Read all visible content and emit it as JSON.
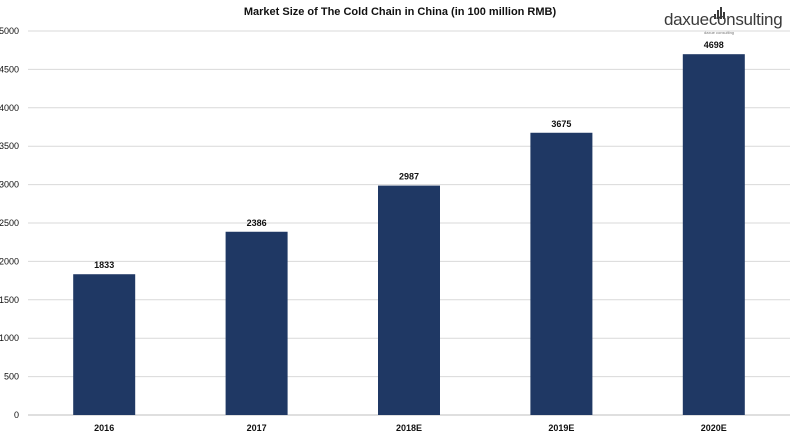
{
  "chart_data": {
    "type": "bar",
    "title": "Market Size of The Cold Chain in China (in 100 million RMB)",
    "categories": [
      "2016",
      "2017",
      "2018E",
      "2019E",
      "2020E"
    ],
    "values": [
      1833,
      2386,
      2987,
      3675,
      4698
    ],
    "data_labels": [
      "1833",
      "2386",
      "2987",
      "3675",
      "4698"
    ],
    "xlabel": "",
    "ylabel": "",
    "ylim": [
      0,
      5000
    ],
    "yticks": [
      "0",
      "500",
      "1000",
      "1500",
      "2000",
      "2500",
      "3000",
      "3500",
      "4000",
      "4500",
      "5000"
    ],
    "grid": true,
    "legend": "none",
    "bar_color": "#1f3864"
  },
  "logo": {
    "wordmark": "daxueconsulting",
    "tagline": "daxue consulting"
  }
}
